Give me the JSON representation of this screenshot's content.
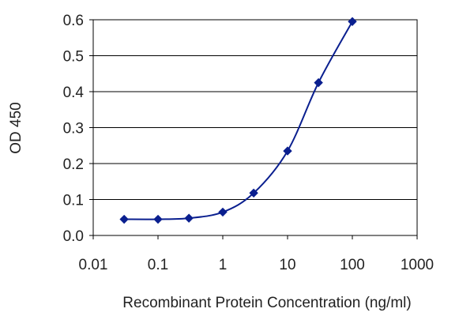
{
  "chart_data": {
    "type": "line",
    "title": "",
    "xlabel": "Recombinant Protein Concentration (ng/ml)",
    "ylabel": "OD 450",
    "x_scale": "log",
    "xlim": [
      0.01,
      1000
    ],
    "ylim": [
      0,
      0.6
    ],
    "x_ticks": [
      {
        "value": 0.01,
        "label": "0.01"
      },
      {
        "value": 0.1,
        "label": "0.1"
      },
      {
        "value": 1,
        "label": "1"
      },
      {
        "value": 10,
        "label": "10"
      },
      {
        "value": 100,
        "label": "100"
      },
      {
        "value": 1000,
        "label": "1000"
      }
    ],
    "y_ticks": [
      {
        "value": 0,
        "label": "0.0"
      },
      {
        "value": 0.1,
        "label": "0.1"
      },
      {
        "value": 0.2,
        "label": "0.2"
      },
      {
        "value": 0.3,
        "label": "0.3"
      },
      {
        "value": 0.4,
        "label": "0.4"
      },
      {
        "value": 0.5,
        "label": "0.5"
      },
      {
        "value": 0.6,
        "label": "0.6"
      }
    ],
    "grid": "horizontal",
    "series": [
      {
        "color": "#0a1f8f",
        "x": [
          0.03,
          0.1,
          0.3,
          1,
          3,
          10,
          30,
          100
        ],
        "y": [
          0.045,
          0.045,
          0.048,
          0.065,
          0.118,
          0.235,
          0.425,
          0.595
        ]
      }
    ]
  }
}
